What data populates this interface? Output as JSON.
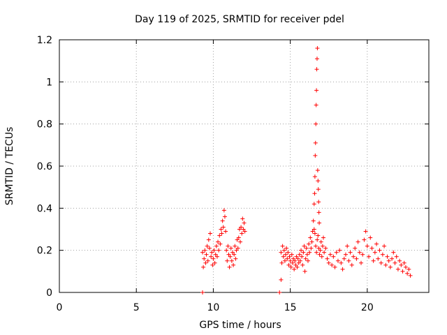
{
  "chart_data": {
    "type": "scatter",
    "title": "Day 119 of 2025, SRMTID for receiver pdel",
    "xlabel": "GPS time / hours",
    "ylabel": "SRMTID / TECUs",
    "xlim": [
      0,
      24
    ],
    "ylim": [
      0,
      1.2
    ],
    "xticks": [
      0,
      5,
      10,
      15,
      20
    ],
    "xtick_labels": [
      "0",
      "5",
      "10",
      "15",
      "20"
    ],
    "yticks": [
      0,
      0.2,
      0.4,
      0.6,
      0.8,
      1.0,
      1.2
    ],
    "ytick_labels": [
      "0",
      "0.2",
      "0.4",
      "0.6",
      "0.8",
      "1",
      "1.2"
    ],
    "grid": true,
    "marker": "+",
    "marker_color": "#ff0000",
    "series": [
      {
        "name": "SRMTID",
        "x": [
          9.3,
          9.35,
          9.4,
          9.45,
          9.5,
          9.55,
          9.6,
          9.65,
          9.7,
          9.75,
          9.8,
          9.85,
          9.9,
          9.95,
          10.0,
          10.05,
          10.1,
          10.15,
          10.2,
          10.25,
          10.3,
          10.35,
          10.4,
          10.45,
          10.5,
          10.55,
          10.6,
          10.65,
          10.7,
          10.75,
          10.8,
          10.85,
          10.9,
          10.95,
          11.0,
          11.05,
          11.1,
          11.15,
          11.2,
          11.25,
          11.3,
          11.35,
          11.4,
          11.45,
          11.5,
          11.55,
          11.6,
          11.65,
          11.7,
          11.75,
          11.8,
          11.85,
          11.9,
          11.95,
          12.0,
          12.05,
          14.4,
          14.45,
          14.5,
          14.55,
          14.6,
          14.65,
          14.7,
          14.75,
          14.8,
          14.85,
          14.9,
          14.95,
          15.0,
          15.05,
          15.1,
          15.15,
          15.2,
          15.25,
          15.3,
          15.35,
          15.4,
          15.45,
          15.5,
          15.55,
          15.6,
          15.65,
          15.7,
          15.75,
          15.8,
          15.85,
          15.9,
          15.95,
          16.0,
          16.05,
          16.1,
          16.15,
          16.2,
          16.25,
          16.3,
          16.35,
          16.4,
          16.45,
          16.5,
          16.55,
          16.6,
          16.65,
          16.7,
          16.75,
          16.8,
          16.85,
          16.9,
          16.95,
          17.0,
          17.05,
          17.1,
          17.15,
          17.2,
          17.3,
          17.4,
          17.5,
          17.6,
          17.7,
          17.8,
          17.9,
          18.0,
          18.1,
          18.2,
          18.3,
          18.4,
          18.5,
          18.6,
          18.7,
          18.8,
          18.9,
          19.0,
          19.1,
          19.2,
          19.3,
          19.4,
          19.5,
          19.6,
          19.7,
          19.8,
          19.9,
          20.0,
          20.1,
          20.2,
          20.3,
          20.4,
          20.5,
          20.6,
          20.7,
          20.8,
          20.9,
          21.0,
          21.1,
          21.2,
          21.3,
          21.4,
          21.5,
          21.6,
          21.7,
          21.8,
          21.9,
          22.0,
          22.1,
          22.2,
          22.3,
          22.4,
          22.5,
          22.6,
          22.7,
          22.8,
          16.55,
          16.58,
          16.6,
          16.62,
          16.64,
          16.66,
          16.68,
          16.7,
          16.72,
          16.74,
          16.76,
          16.78,
          16.8,
          16.82,
          16.84,
          16.86,
          16.88,
          9.3,
          14.3,
          14.4
        ],
        "y": [
          0.19,
          0.12,
          0.16,
          0.2,
          0.14,
          0.18,
          0.22,
          0.15,
          0.25,
          0.21,
          0.28,
          0.17,
          0.19,
          0.13,
          0.16,
          0.2,
          0.14,
          0.18,
          0.22,
          0.17,
          0.24,
          0.2,
          0.27,
          0.23,
          0.3,
          0.28,
          0.34,
          0.31,
          0.39,
          0.36,
          0.29,
          0.2,
          0.15,
          0.22,
          0.18,
          0.12,
          0.17,
          0.21,
          0.15,
          0.19,
          0.13,
          0.18,
          0.22,
          0.16,
          0.2,
          0.25,
          0.21,
          0.26,
          0.3,
          0.24,
          0.31,
          0.28,
          0.35,
          0.3,
          0.33,
          0.29,
          0.19,
          0.14,
          0.22,
          0.17,
          0.2,
          0.15,
          0.18,
          0.21,
          0.16,
          0.19,
          0.13,
          0.17,
          0.15,
          0.12,
          0.18,
          0.14,
          0.16,
          0.11,
          0.15,
          0.13,
          0.17,
          0.12,
          0.16,
          0.14,
          0.18,
          0.15,
          0.2,
          0.17,
          0.13,
          0.19,
          0.22,
          0.1,
          0.16,
          0.21,
          0.18,
          0.15,
          0.23,
          0.19,
          0.26,
          0.21,
          0.24,
          0.29,
          0.34,
          0.3,
          0.28,
          0.22,
          0.19,
          0.25,
          0.27,
          0.21,
          0.18,
          0.2,
          0.24,
          0.17,
          0.22,
          0.26,
          0.19,
          0.21,
          0.16,
          0.14,
          0.18,
          0.13,
          0.17,
          0.12,
          0.19,
          0.15,
          0.2,
          0.14,
          0.11,
          0.16,
          0.18,
          0.22,
          0.15,
          0.19,
          0.13,
          0.17,
          0.21,
          0.16,
          0.24,
          0.19,
          0.14,
          0.18,
          0.25,
          0.29,
          0.22,
          0.17,
          0.26,
          0.21,
          0.15,
          0.19,
          0.23,
          0.16,
          0.2,
          0.14,
          0.18,
          0.22,
          0.13,
          0.17,
          0.15,
          0.12,
          0.16,
          0.19,
          0.14,
          0.17,
          0.11,
          0.15,
          0.13,
          0.1,
          0.14,
          0.12,
          0.09,
          0.11,
          0.08,
          0.42,
          0.47,
          0.55,
          0.65,
          0.71,
          0.8,
          0.89,
          0.96,
          1.06,
          1.11,
          1.16,
          0.58,
          0.53,
          0.49,
          0.43,
          0.38,
          0.33,
          0.0,
          0.0,
          0.06
        ]
      }
    ]
  }
}
